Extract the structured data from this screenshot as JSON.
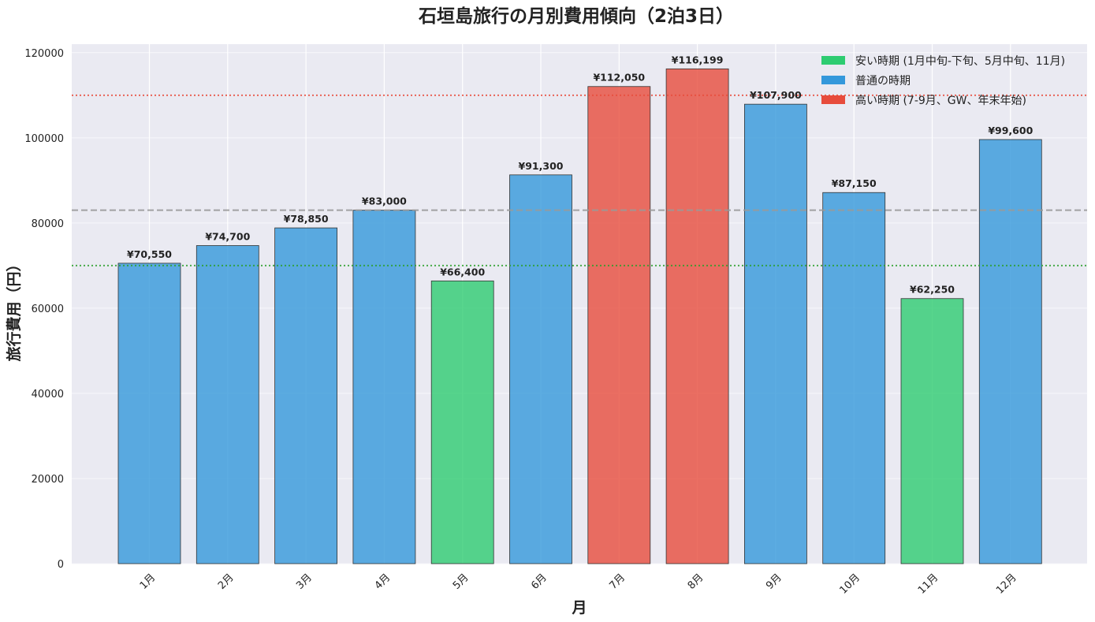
{
  "chart_data": {
    "type": "bar",
    "title": "石垣島旅行の月別費用傾向（2泊3日）",
    "xlabel": "月",
    "ylabel": "旅行費用（円）",
    "categories": [
      "1月",
      "2月",
      "3月",
      "4月",
      "5月",
      "6月",
      "7月",
      "8月",
      "9月",
      "10月",
      "11月",
      "12月"
    ],
    "values": [
      70550,
      74700,
      78850,
      83000,
      66400,
      91300,
      112050,
      116199,
      107900,
      87150,
      62250,
      99600
    ],
    "value_labels": [
      "¥70,550",
      "¥74,700",
      "¥78,850",
      "¥83,000",
      "¥66,400",
      "¥91,300",
      "¥112,050",
      "¥116,199",
      "¥107,900",
      "¥87,150",
      "¥62,250",
      "¥99,600"
    ],
    "bar_groups": [
      "normal",
      "normal",
      "normal",
      "normal",
      "cheap",
      "normal",
      "high",
      "high",
      "normal",
      "normal",
      "cheap",
      "normal"
    ],
    "ylim": [
      0,
      122000
    ],
    "yticks": [
      0,
      20000,
      40000,
      60000,
      80000,
      100000,
      120000
    ],
    "ytick_labels": [
      "0",
      "20000",
      "40000",
      "60000",
      "80000",
      "100000",
      "120000"
    ],
    "reference_lines": [
      {
        "value": 110000,
        "style": "dotted",
        "color": "#e74c3c"
      },
      {
        "value": 83000,
        "style": "dashed",
        "color": "#999999"
      },
      {
        "value": 70000,
        "style": "dotted",
        "color": "#2ca02c"
      }
    ],
    "legend": [
      {
        "key": "cheap",
        "label": "安い時期 (1月中旬-下旬、5月中旬、11月)",
        "color": "#2ecc71"
      },
      {
        "key": "normal",
        "label": "普通の時期",
        "color": "#3498db"
      },
      {
        "key": "high",
        "label": "高い時期 (7-9月、GW、年末年始)",
        "color": "#e74c3c"
      }
    ],
    "legend_position": "top-right",
    "grid": true,
    "background_color": "#eaeaf2"
  }
}
